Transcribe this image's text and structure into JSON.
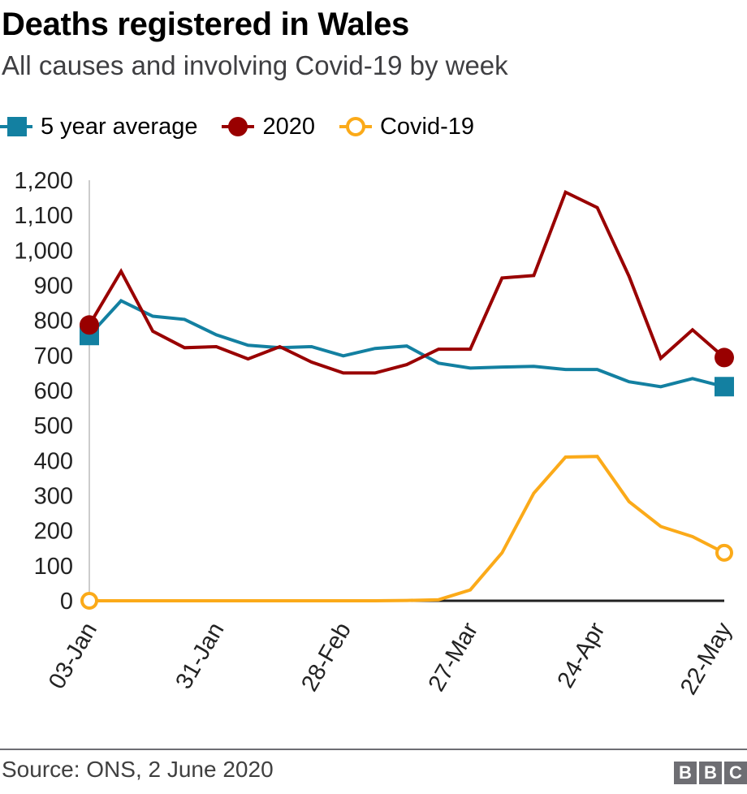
{
  "header": {
    "title": "Deaths registered in Wales",
    "subtitle": "All causes and involving Covid-19 by week"
  },
  "legend": [
    {
      "label": "5 year average",
      "marker": "square",
      "color": "#1380a1"
    },
    {
      "label": "2020",
      "marker": "filled-circle",
      "color": "#990000"
    },
    {
      "label": "Covid-19",
      "marker": "open-circle",
      "color": "#fbaa19"
    }
  ],
  "footer": {
    "source": "Source: ONS, 2 June 2020",
    "logo_letters": [
      "B",
      "B",
      "C"
    ]
  },
  "chart_data": {
    "type": "line",
    "title": "Deaths registered in Wales",
    "subtitle": "All causes and involving Covid-19 by week",
    "xlabel": "",
    "ylabel": "",
    "ylim": [
      0,
      1200
    ],
    "yticks": [
      0,
      100,
      200,
      300,
      400,
      500,
      600,
      700,
      800,
      900,
      1000,
      1100,
      1200
    ],
    "ytick_labels": [
      "0",
      "100",
      "200",
      "300",
      "400",
      "500",
      "600",
      "700",
      "800",
      "900",
      "1,000",
      "1,100",
      "1,200"
    ],
    "x": [
      "03-Jan",
      "10-Jan",
      "17-Jan",
      "24-Jan",
      "31-Jan",
      "07-Feb",
      "14-Feb",
      "21-Feb",
      "28-Feb",
      "06-Mar",
      "13-Mar",
      "20-Mar",
      "27-Mar",
      "03-Apr",
      "10-Apr",
      "17-Apr",
      "24-Apr",
      "01-May",
      "08-May",
      "15-May",
      "22-May"
    ],
    "xtick_labels": [
      "03-Jan",
      "31-Jan",
      "28-Feb",
      "27-Mar",
      "24-Apr",
      "22-May"
    ],
    "xtick_indices": [
      0,
      4,
      8,
      12,
      16,
      20
    ],
    "grid": false,
    "legend_position": "top-left",
    "series": [
      {
        "name": "5 year average",
        "color": "#1380a1",
        "end_marker": "square",
        "values": [
          757,
          856,
          812,
          803,
          759,
          729,
          722,
          725,
          699,
          720,
          727,
          678,
          664,
          667,
          669,
          660,
          660,
          625,
          611,
          634,
          611
        ]
      },
      {
        "name": "2020",
        "color": "#990000",
        "end_marker": "filled-circle",
        "values": [
          787,
          940,
          769,
          722,
          725,
          690,
          725,
          681,
          650,
          650,
          674,
          718,
          718,
          921,
          928,
          1166,
          1122,
          926,
          692,
          773,
          694
        ]
      },
      {
        "name": "Covid-19",
        "color": "#fbaa19",
        "end_marker": "open-circle",
        "values": [
          0,
          0,
          0,
          0,
          0,
          0,
          0,
          0,
          0,
          0,
          1,
          3,
          31,
          137,
          307,
          410,
          412,
          283,
          212,
          183,
          137
        ]
      }
    ]
  }
}
